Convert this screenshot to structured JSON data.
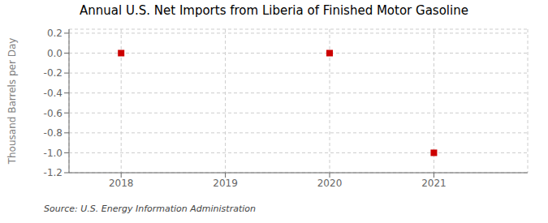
{
  "chart_data": {
    "type": "scatter",
    "title": "Annual U.S. Net Imports from Liberia of Finished Motor Gasoline",
    "ylabel": "Thousand Barrels per Day",
    "source": "Source: U.S. Energy Information Administration",
    "x": [
      2018,
      2020,
      2021
    ],
    "values": [
      0.0,
      0.0,
      -1.0
    ],
    "color": "#cc0000",
    "marker": "square",
    "xlim": [
      2017.5,
      2021.9
    ],
    "ylim": [
      -1.2,
      0.24
    ],
    "xticks": [
      2018,
      2019,
      2020,
      2021
    ],
    "yticks": [
      0.2,
      {
        "value": 0,
        "label": "0.0"
      },
      -0.2,
      -0.4,
      -0.6,
      -0.8,
      {
        "value": -1,
        "label": "-1.0"
      },
      -1.2
    ],
    "grid": true
  }
}
